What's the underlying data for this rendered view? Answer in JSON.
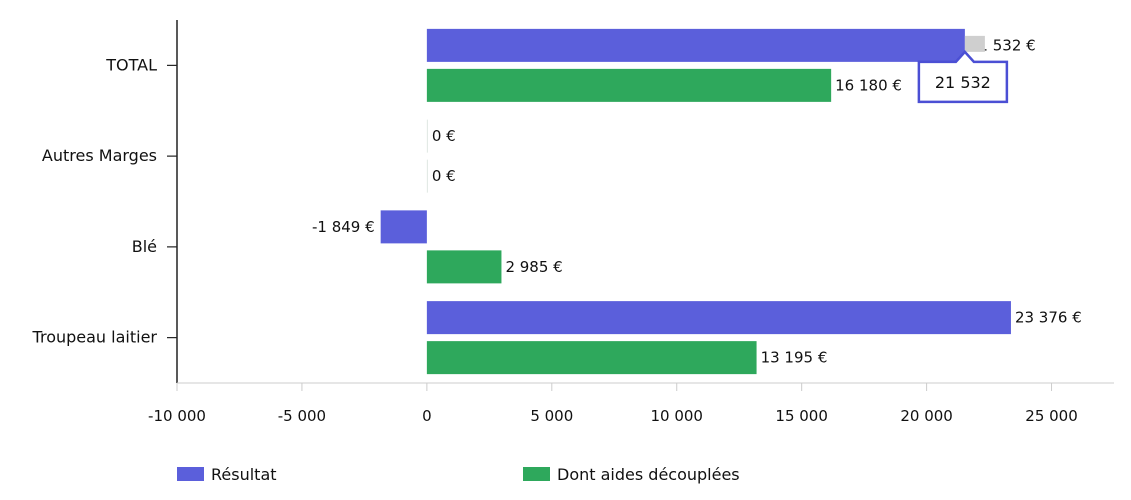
{
  "chart_data": {
    "type": "bar",
    "orientation": "horizontal",
    "categories": [
      "TOTAL",
      "Autres Marges",
      "Blé",
      "Troupeau laitier"
    ],
    "series": [
      {
        "name": "Résultat",
        "color": "#5b5fdb",
        "values": [
          21532,
          0,
          -1849,
          23376
        ],
        "labels": [
          "21 532 €",
          "0 €",
          "-1 849 €",
          "23 376 €"
        ]
      },
      {
        "name": "Dont aides découplées",
        "color": "#2ea85c",
        "values": [
          16180,
          0,
          2985,
          13195
        ],
        "labels": [
          "16 180 €",
          "0 €",
          "2 985 €",
          "13 195 €"
        ]
      }
    ],
    "xlim": [
      -10000,
      27500
    ],
    "xticks": [
      -10000,
      -5000,
      0,
      5000,
      10000,
      15000,
      20000,
      25000
    ],
    "xtick_labels": [
      "-10 000",
      "-5 000",
      "0",
      "5 000",
      "10 000",
      "15 000",
      "20 000",
      "25 000"
    ],
    "title": "",
    "xlabel": "",
    "ylabel": "",
    "grid": false,
    "legend_position": "bottom",
    "tooltip": {
      "category": "TOTAL",
      "series": "Résultat",
      "text": "21 532"
    }
  }
}
